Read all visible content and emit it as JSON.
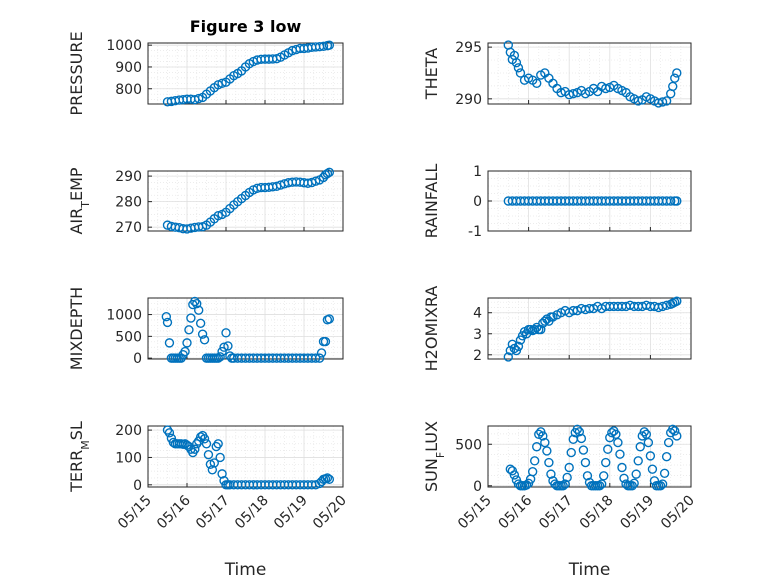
{
  "chart_data": [
    {
      "type": "scatter",
      "title": "Figure 3 low",
      "ylabel": "PRESSURE",
      "ylim": [
        730,
        1010
      ],
      "yticks": [
        800,
        900,
        1000
      ],
      "xlim": [
        0,
        5
      ],
      "series": [
        {
          "x": [
            0.5,
            0.6,
            0.7,
            0.8,
            0.9,
            1.0,
            1.1,
            1.2,
            1.3,
            1.4,
            1.5,
            1.6,
            1.7,
            1.8,
            1.9,
            2.0,
            2.1,
            2.2,
            2.3,
            2.4,
            2.5,
            2.6,
            2.7,
            2.8,
            2.9,
            3.0,
            3.1,
            3.2,
            3.3,
            3.4,
            3.5,
            3.6,
            3.7,
            3.8,
            3.9,
            4.0,
            4.1,
            4.2,
            4.3,
            4.4,
            4.5,
            4.6,
            4.65
          ],
          "y": [
            740,
            742,
            745,
            748,
            750,
            752,
            752,
            750,
            755,
            760,
            775,
            790,
            805,
            818,
            825,
            830,
            845,
            860,
            870,
            882,
            900,
            915,
            925,
            932,
            935,
            936,
            936,
            937,
            938,
            945,
            955,
            965,
            975,
            980,
            985,
            985,
            987,
            990,
            992,
            993,
            995,
            998,
            1000
          ]
        }
      ]
    },
    {
      "type": "scatter",
      "ylabel": "THETA",
      "ylim": [
        289.5,
        295.4
      ],
      "yticks": [
        290,
        295
      ],
      "xlim": [
        0,
        5
      ],
      "series": [
        {
          "x": [
            0.5,
            0.55,
            0.6,
            0.65,
            0.7,
            0.75,
            0.8,
            0.9,
            1.0,
            1.1,
            1.2,
            1.3,
            1.4,
            1.5,
            1.6,
            1.7,
            1.8,
            1.9,
            2.0,
            2.1,
            2.2,
            2.3,
            2.4,
            2.5,
            2.6,
            2.7,
            2.8,
            2.9,
            3.0,
            3.1,
            3.2,
            3.3,
            3.4,
            3.5,
            3.6,
            3.7,
            3.8,
            3.9,
            4.0,
            4.1,
            4.2,
            4.3,
            4.4,
            4.5,
            4.55,
            4.6,
            4.65
          ],
          "y": [
            295.2,
            294.5,
            293.8,
            294.2,
            293.5,
            293.0,
            292.5,
            291.8,
            292.0,
            291.8,
            291.5,
            292.3,
            292.5,
            292.0,
            291.5,
            291.0,
            290.6,
            290.7,
            290.4,
            290.5,
            290.6,
            290.8,
            290.5,
            290.7,
            291.0,
            290.7,
            291.2,
            291.0,
            291.1,
            291.3,
            291.0,
            290.8,
            290.6,
            290.2,
            290.0,
            289.8,
            289.9,
            290.2,
            290.0,
            289.8,
            289.6,
            289.7,
            289.8,
            290.5,
            291.2,
            292.0,
            292.5
          ]
        }
      ]
    },
    {
      "type": "scatter",
      "ylabel": "AIR_TEMP",
      "ylim": [
        268.5,
        292
      ],
      "yticks": [
        270,
        280,
        290
      ],
      "xlim": [
        0,
        5
      ],
      "series": [
        {
          "x": [
            0.5,
            0.6,
            0.7,
            0.8,
            0.9,
            1.0,
            1.1,
            1.2,
            1.3,
            1.4,
            1.5,
            1.6,
            1.7,
            1.8,
            1.9,
            2.0,
            2.1,
            2.2,
            2.3,
            2.4,
            2.5,
            2.6,
            2.7,
            2.8,
            2.9,
            3.0,
            3.1,
            3.2,
            3.3,
            3.4,
            3.5,
            3.6,
            3.7,
            3.8,
            3.9,
            4.0,
            4.1,
            4.2,
            4.3,
            4.4,
            4.5,
            4.55,
            4.6,
            4.65
          ],
          "y": [
            270.8,
            270.3,
            270.0,
            269.8,
            269.4,
            269.3,
            269.6,
            269.9,
            270.1,
            270.2,
            270.8,
            272.0,
            273.3,
            274.5,
            275.0,
            275.8,
            277.3,
            278.7,
            280.0,
            281.2,
            282.4,
            283.6,
            284.6,
            285.2,
            285.5,
            285.5,
            285.6,
            285.8,
            286.0,
            286.5,
            287.0,
            287.4,
            287.6,
            287.7,
            287.6,
            287.4,
            287.2,
            287.5,
            288.0,
            288.5,
            289.5,
            290.5,
            291.0,
            291.5
          ]
        }
      ]
    },
    {
      "type": "scatter",
      "ylabel": "RAINFALL",
      "ylim": [
        -1,
        1
      ],
      "yticks": [
        -1,
        0,
        1
      ],
      "xlim": [
        0,
        5
      ],
      "series": [
        {
          "x": [
            0.5,
            0.6,
            0.7,
            0.8,
            0.9,
            1.0,
            1.1,
            1.2,
            1.3,
            1.4,
            1.5,
            1.6,
            1.7,
            1.8,
            1.9,
            2.0,
            2.1,
            2.2,
            2.3,
            2.4,
            2.5,
            2.6,
            2.7,
            2.8,
            2.9,
            3.0,
            3.1,
            3.2,
            3.3,
            3.4,
            3.5,
            3.6,
            3.7,
            3.8,
            3.9,
            4.0,
            4.1,
            4.2,
            4.3,
            4.4,
            4.5,
            4.6,
            4.65
          ],
          "y": [
            0,
            0,
            0,
            0,
            0,
            0,
            0,
            0,
            0,
            0,
            0,
            0,
            0,
            0,
            0,
            0,
            0,
            0,
            0,
            0,
            0,
            0,
            0,
            0,
            0,
            0,
            0,
            0,
            0,
            0,
            0,
            0,
            0,
            0,
            0,
            0,
            0,
            0,
            0,
            0,
            0,
            0,
            0
          ]
        }
      ]
    },
    {
      "type": "scatter",
      "ylabel": "MIXDEPTH",
      "ylim": [
        -20,
        1380
      ],
      "yticks": [
        0,
        500,
        1000
      ],
      "xlim": [
        0,
        5
      ],
      "series": [
        {
          "x": [
            0.47,
            0.5,
            0.55,
            0.6,
            0.65,
            0.7,
            0.75,
            0.8,
            0.85,
            0.9,
            0.95,
            1.0,
            1.05,
            1.1,
            1.15,
            1.2,
            1.25,
            1.3,
            1.35,
            1.4,
            1.45,
            1.5,
            1.55,
            1.6,
            1.65,
            1.7,
            1.75,
            1.8,
            1.85,
            1.9,
            1.95,
            2.0,
            2.05,
            2.1,
            2.15,
            2.2,
            2.3,
            2.4,
            2.5,
            2.6,
            2.7,
            2.8,
            2.9,
            3.0,
            3.1,
            3.2,
            3.3,
            3.4,
            3.5,
            3.6,
            3.7,
            3.8,
            3.9,
            4.0,
            4.1,
            4.2,
            4.3,
            4.4,
            4.45,
            4.5,
            4.55,
            4.6,
            4.65
          ],
          "y": [
            950,
            820,
            350,
            0,
            0,
            0,
            0,
            0,
            0,
            80,
            150,
            350,
            650,
            920,
            1230,
            1300,
            1250,
            1100,
            800,
            550,
            420,
            0,
            0,
            0,
            0,
            0,
            0,
            0,
            30,
            150,
            250,
            580,
            280,
            50,
            0,
            0,
            0,
            0,
            0,
            0,
            0,
            0,
            0,
            0,
            0,
            0,
            0,
            0,
            0,
            0,
            0,
            0,
            0,
            0,
            0,
            0,
            0,
            0,
            120,
            380,
            380,
            880,
            900
          ]
        }
      ]
    },
    {
      "type": "scatter",
      "ylabel": "H2OMIXRA",
      "ylim": [
        1.8,
        4.7
      ],
      "yticks": [
        2,
        3,
        4
      ],
      "xlim": [
        0,
        5
      ],
      "series": [
        {
          "x": [
            0.5,
            0.55,
            0.6,
            0.65,
            0.7,
            0.75,
            0.8,
            0.85,
            0.9,
            0.95,
            1.0,
            1.05,
            1.1,
            1.15,
            1.2,
            1.25,
            1.3,
            1.35,
            1.4,
            1.45,
            1.5,
            1.55,
            1.6,
            1.7,
            1.8,
            1.9,
            2.0,
            2.1,
            2.2,
            2.3,
            2.4,
            2.5,
            2.6,
            2.7,
            2.8,
            2.9,
            3.0,
            3.1,
            3.2,
            3.3,
            3.4,
            3.5,
            3.6,
            3.7,
            3.8,
            3.9,
            4.0,
            4.1,
            4.2,
            4.3,
            4.4,
            4.5,
            4.55,
            4.6,
            4.65
          ],
          "y": [
            1.9,
            2.2,
            2.5,
            2.3,
            2.2,
            2.4,
            2.7,
            2.9,
            3.1,
            3.0,
            3.2,
            3.2,
            3.15,
            3.2,
            3.3,
            3.2,
            3.2,
            3.5,
            3.6,
            3.7,
            3.6,
            3.8,
            3.8,
            3.9,
            4.0,
            4.1,
            4.0,
            4.1,
            4.1,
            4.2,
            4.15,
            4.2,
            4.2,
            4.3,
            4.2,
            4.3,
            4.3,
            4.3,
            4.3,
            4.3,
            4.3,
            4.35,
            4.3,
            4.3,
            4.3,
            4.35,
            4.3,
            4.3,
            4.25,
            4.3,
            4.35,
            4.4,
            4.45,
            4.5,
            4.55
          ]
        }
      ]
    },
    {
      "type": "scatter",
      "ylabel": "TERR_MSL",
      "ylim": [
        -8,
        215
      ],
      "yticks": [
        0,
        100,
        200
      ],
      "xticklabels": [
        "05/15",
        "05/16",
        "05/17",
        "05/18",
        "05/19",
        "05/20"
      ],
      "xlabel": "Time",
      "xlim": [
        0,
        5
      ],
      "series": [
        {
          "x": [
            0.5,
            0.55,
            0.6,
            0.65,
            0.7,
            0.75,
            0.8,
            0.85,
            0.9,
            0.95,
            1.0,
            1.05,
            1.1,
            1.15,
            1.2,
            1.25,
            1.3,
            1.35,
            1.4,
            1.45,
            1.5,
            1.55,
            1.6,
            1.65,
            1.7,
            1.75,
            1.8,
            1.85,
            1.9,
            1.95,
            2.0,
            2.05,
            2.1,
            2.2,
            2.3,
            2.4,
            2.5,
            2.6,
            2.7,
            2.8,
            2.9,
            3.0,
            3.1,
            3.2,
            3.3,
            3.4,
            3.5,
            3.6,
            3.7,
            3.8,
            3.9,
            4.0,
            4.1,
            4.2,
            4.3,
            4.4,
            4.45,
            4.5,
            4.55,
            4.6,
            4.65
          ],
          "y": [
            200,
            190,
            170,
            155,
            150,
            150,
            150,
            150,
            148,
            150,
            145,
            140,
            130,
            118,
            130,
            150,
            160,
            175,
            180,
            168,
            150,
            110,
            75,
            55,
            80,
            140,
            150,
            100,
            40,
            15,
            0,
            0,
            0,
            0,
            0,
            0,
            0,
            0,
            0,
            0,
            0,
            0,
            0,
            0,
            0,
            0,
            0,
            0,
            0,
            0,
            0,
            0,
            0,
            0,
            0,
            5,
            12,
            20,
            22,
            25,
            20
          ]
        }
      ]
    },
    {
      "type": "scatter",
      "ylabel": "SUN_FLUX",
      "ylim": [
        -15,
        720
      ],
      "yticks": [
        0,
        500
      ],
      "xticklabels": [
        "05/15",
        "05/16",
        "05/17",
        "05/18",
        "05/19",
        "05/20"
      ],
      "xlabel": "Time",
      "xlim": [
        0,
        5
      ],
      "series": [
        {
          "x": [
            0.55,
            0.6,
            0.65,
            0.7,
            0.75,
            0.8,
            0.85,
            0.9,
            0.95,
            1.0,
            1.05,
            1.1,
            1.15,
            1.2,
            1.25,
            1.3,
            1.35,
            1.4,
            1.45,
            1.5,
            1.55,
            1.6,
            1.65,
            1.7,
            1.75,
            1.8,
            1.85,
            1.9,
            1.95,
            2.0,
            2.05,
            2.1,
            2.15,
            2.2,
            2.25,
            2.3,
            2.35,
            2.4,
            2.45,
            2.5,
            2.55,
            2.6,
            2.65,
            2.7,
            2.75,
            2.8,
            2.85,
            2.9,
            2.95,
            3.0,
            3.05,
            3.1,
            3.15,
            3.2,
            3.25,
            3.3,
            3.35,
            3.4,
            3.45,
            3.5,
            3.55,
            3.6,
            3.65,
            3.7,
            3.75,
            3.8,
            3.85,
            3.9,
            3.95,
            4.0,
            4.05,
            4.1,
            4.15,
            4.2,
            4.25,
            4.3,
            4.35,
            4.4,
            4.45,
            4.5,
            4.55,
            4.6,
            4.65
          ],
          "y": [
            200,
            180,
            130,
            70,
            20,
            0,
            0,
            0,
            10,
            30,
            80,
            170,
            300,
            470,
            620,
            650,
            600,
            520,
            420,
            280,
            140,
            60,
            20,
            0,
            0,
            0,
            0,
            20,
            100,
            220,
            400,
            560,
            640,
            680,
            650,
            570,
            430,
            280,
            120,
            40,
            0,
            0,
            0,
            0,
            0,
            20,
            120,
            280,
            440,
            580,
            640,
            660,
            620,
            520,
            380,
            220,
            90,
            20,
            0,
            0,
            0,
            30,
            140,
            300,
            470,
            600,
            650,
            620,
            520,
            360,
            200,
            60,
            0,
            0,
            0,
            20,
            150,
            350,
            520,
            640,
            680,
            660,
            600
          ]
        }
      ]
    }
  ]
}
